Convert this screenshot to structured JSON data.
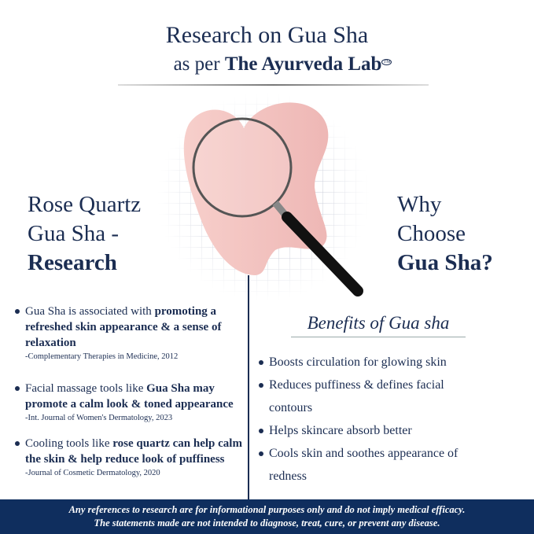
{
  "header": {
    "title": "Research on Gua Sha",
    "subtitle_prefix": "as per",
    "brand": "The Ayurveda Lab",
    "trademark": "TM"
  },
  "left": {
    "heading_line1": "Rose Quartz",
    "heading_line2": "Gua Sha -",
    "heading_bold": "Research",
    "items": [
      {
        "text": "Gua Sha is associated with ",
        "bold": "promoting a refreshed skin appearance & a sense of relaxation",
        "cite": "-Complementary Therapies in Medicine, 2012"
      },
      {
        "text": "Facial massage tools like ",
        "bold": "Gua Sha may promote a calm look & toned appearance",
        "cite": "-Int. Journal of Women's Dermatology, 2023"
      },
      {
        "text": "Cooling tools like ",
        "bold": "rose quartz can help calm the skin & help reduce look  of puffiness",
        "cite": "-Journal of Cosmetic Dermatology, 2020"
      }
    ]
  },
  "right": {
    "heading_line1": "Why",
    "heading_line2": "Choose",
    "heading_bold": "Gua Sha?",
    "benefits_title": "Benefits of Gua sha",
    "items": [
      "Boosts circulation for glowing skin",
      "Reduces puffiness & defines facial contours",
      "Helps skincare absorb better",
      "Cools skin and soothes appearance of redness"
    ]
  },
  "footer": {
    "line1": "Any references to research are for informational purposes only and do not imply medical efficacy.",
    "line2": "The statements made are not intended to diagnose, treat, cure, or prevent any disease."
  },
  "colors": {
    "navy": "#1b2d52",
    "footer": "#0f2e5e",
    "rose": "#f4c6c4"
  }
}
